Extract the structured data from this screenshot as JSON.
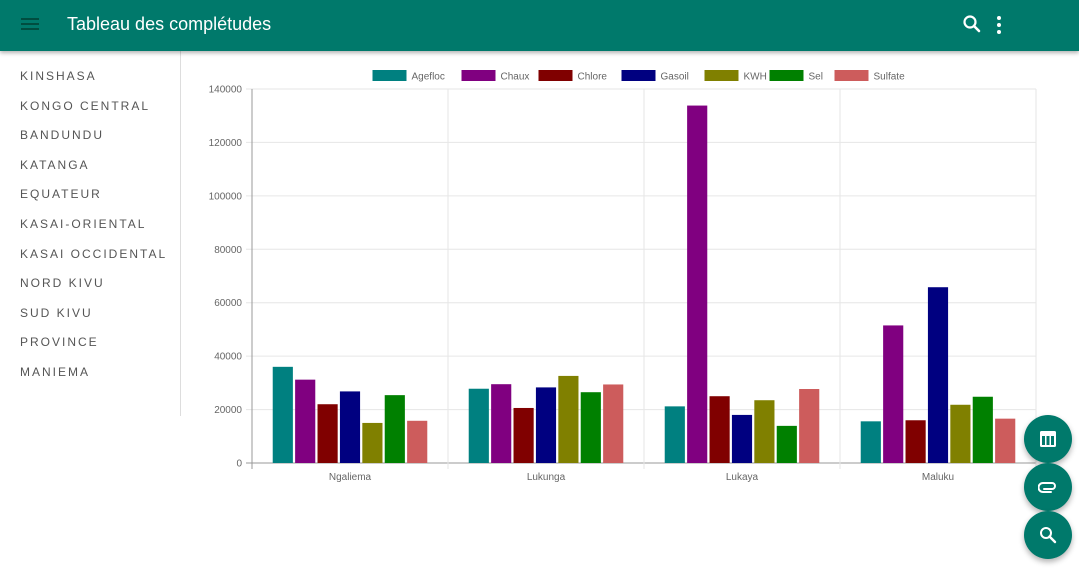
{
  "app": {
    "title": "Tableau des complétudes"
  },
  "icons": {
    "menu": "menu-icon",
    "search": "search-icon",
    "more": "more-vert-icon"
  },
  "colors": {
    "primary": "#00796b"
  },
  "sidebar": {
    "items": [
      {
        "label": "KINSHASA"
      },
      {
        "label": "KONGO CENTRAL"
      },
      {
        "label": "BANDUNDU"
      },
      {
        "label": "KATANGA"
      },
      {
        "label": "EQUATEUR"
      },
      {
        "label": "KASAI-ORIENTAL"
      },
      {
        "label": "KASAI OCCIDENTAL"
      },
      {
        "label": "NORD KIVU"
      },
      {
        "label": "SUD KIVU"
      },
      {
        "label": "PROVINCE"
      },
      {
        "label": "MANIEMA"
      }
    ]
  },
  "fabs": [
    {
      "icon": "table-icon"
    },
    {
      "icon": "attachment-icon"
    },
    {
      "icon": "search-icon"
    }
  ],
  "chart_data": {
    "type": "bar",
    "categories": [
      "Ngaliema",
      "Lukunga",
      "Lukaya",
      "Maluku"
    ],
    "series": [
      {
        "name": "Agefloc",
        "color": "#008080",
        "values": [
          36000,
          27800,
          21200,
          15600
        ]
      },
      {
        "name": "Chaux",
        "color": "#800080",
        "values": [
          31200,
          29500,
          133800,
          51500
        ]
      },
      {
        "name": "Chlore",
        "color": "#800000",
        "values": [
          22000,
          20600,
          25000,
          16000
        ]
      },
      {
        "name": "Gasoil",
        "color": "#000080",
        "values": [
          26800,
          28300,
          18000,
          65800
        ]
      },
      {
        "name": "KWH",
        "color": "#808000",
        "values": [
          15000,
          32600,
          23500,
          21800
        ]
      },
      {
        "name": "Sel",
        "color": "#008000",
        "values": [
          25400,
          26500,
          13900,
          24800
        ]
      },
      {
        "name": "Sulfate",
        "color": "#cd5c5c",
        "values": [
          15800,
          29400,
          27700,
          16600
        ]
      }
    ],
    "ylim": [
      0,
      140000
    ],
    "yticks": [
      "0",
      "20000",
      "40000",
      "60000",
      "80000",
      "100000",
      "120000",
      "140000"
    ],
    "grid": true,
    "legend": "top"
  }
}
